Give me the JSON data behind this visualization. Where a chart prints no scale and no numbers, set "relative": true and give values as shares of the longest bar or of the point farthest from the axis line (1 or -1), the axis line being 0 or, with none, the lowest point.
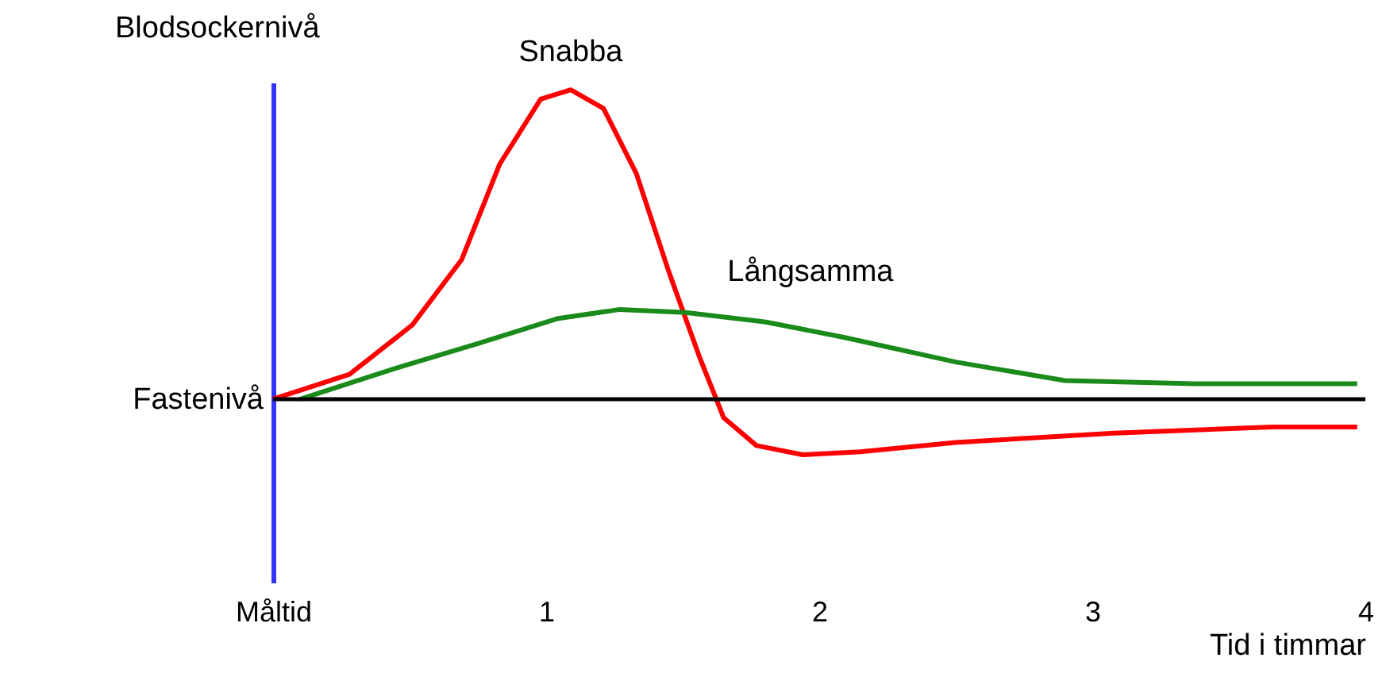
{
  "chart_data": {
    "type": "line",
    "relative": true,
    "ylabel": "Blodsockernivå",
    "xlabel": "Tid i timmar",
    "xlim": [
      0,
      4
    ],
    "xticks": [
      {
        "value": 0,
        "label": "Måltid"
      },
      1,
      2,
      3,
      4
    ],
    "ref_lines": [
      {
        "axis": "y",
        "value": 0,
        "label": "Fastenivå",
        "color": "#000000"
      }
    ],
    "series": [
      {
        "name": "Snabba",
        "color": "#ff0000",
        "x": [
          0,
          0.28,
          0.51,
          0.69,
          0.83,
          0.98,
          1.09,
          1.21,
          1.33,
          1.45,
          1.56,
          1.65,
          1.77,
          1.94,
          2.15,
          2.5,
          3.08,
          3.66,
          3.97
        ],
        "values": [
          0,
          0.08,
          0.24,
          0.45,
          0.76,
          0.97,
          1.0,
          0.94,
          0.73,
          0.41,
          0.14,
          -0.06,
          -0.15,
          -0.18,
          -0.17,
          -0.14,
          -0.11,
          -0.09,
          -0.09
        ]
      },
      {
        "name": "Långsamma",
        "color": "#1a8a1a",
        "x": [
          0.1,
          0.45,
          0.75,
          1.04,
          1.27,
          1.51,
          1.8,
          2.09,
          2.5,
          2.9,
          3.37,
          3.97
        ],
        "values": [
          0,
          0.1,
          0.18,
          0.26,
          0.29,
          0.28,
          0.25,
          0.2,
          0.12,
          0.06,
          0.05,
          0.05
        ]
      }
    ],
    "grid": false,
    "marker": "none",
    "line_style": "solid"
  }
}
